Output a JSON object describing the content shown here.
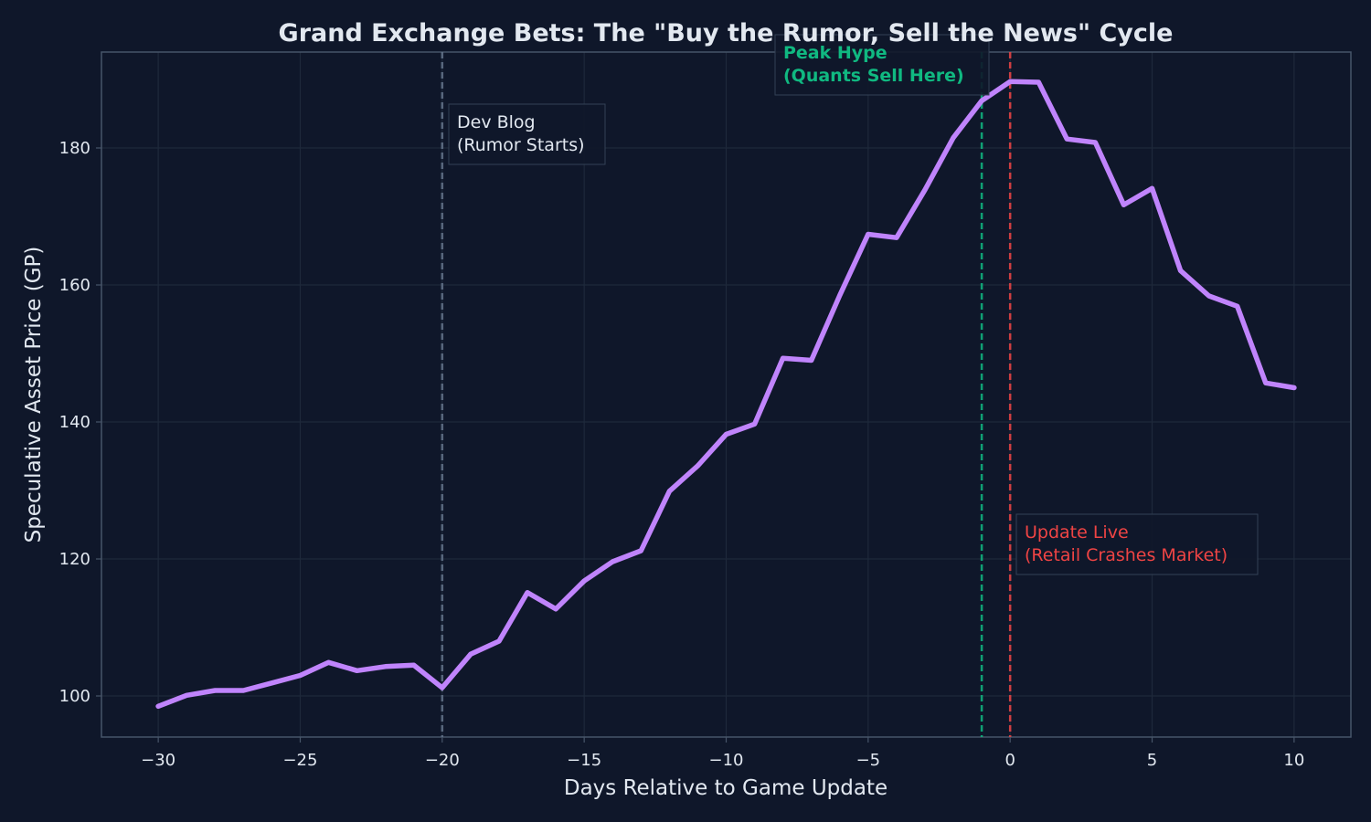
{
  "chart_data": {
    "type": "line",
    "title": "Grand Exchange Bets: The \"Buy the Rumor, Sell the News\" Cycle",
    "xlabel": "Days Relative to Game Update",
    "ylabel": "Speculative Asset Price (GP)",
    "xlim": [
      -32,
      12
    ],
    "ylim": [
      94,
      194
    ],
    "xticks": [
      -30,
      -25,
      -20,
      -15,
      -10,
      -5,
      0,
      5,
      10
    ],
    "xtick_labels": [
      "−30",
      "−25",
      "−20",
      "−15",
      "−10",
      "−5",
      "0",
      "5",
      "10"
    ],
    "yticks": [
      100,
      120,
      140,
      160,
      180
    ],
    "ytick_labels": [
      "100",
      "120",
      "140",
      "160",
      "180"
    ],
    "grid": true,
    "series": [
      {
        "color": "#c084fc",
        "x": [
          -30,
          -29,
          -28,
          -27,
          -26,
          -25,
          -24,
          -23,
          -22,
          -21,
          -20,
          -19,
          -18,
          -17,
          -16,
          -15,
          -14,
          -13,
          -12,
          -11,
          -10,
          -9,
          -8,
          -7,
          -6,
          -5,
          -4,
          -3,
          -2,
          -1,
          0,
          1,
          2,
          3,
          4,
          5,
          6,
          7,
          8,
          9,
          10
        ],
        "values": [
          98.5,
          100.1,
          100.8,
          100.8,
          101.9,
          103.0,
          104.9,
          103.7,
          104.3,
          104.5,
          101.2,
          106.1,
          108.0,
          115.1,
          112.7,
          116.8,
          119.6,
          121.2,
          129.9,
          133.6,
          138.2,
          139.7,
          149.3,
          149.0,
          158.5,
          167.4,
          166.9,
          173.9,
          181.5,
          186.9,
          189.7,
          189.6,
          181.3,
          180.8,
          171.7,
          174.1,
          162.1,
          158.4,
          156.9,
          145.7,
          145.0
        ]
      }
    ],
    "vlines": [
      {
        "x": -20,
        "color": "#64748b"
      },
      {
        "x": -1,
        "color": "#10b981"
      },
      {
        "x": 0,
        "color": "#ef4444"
      }
    ],
    "annotations": [
      {
        "lines": [
          "Dev Blog",
          "(Rumor Starts)"
        ],
        "color": "#e2e8f0",
        "bold": false
      },
      {
        "lines": [
          "Peak Hype",
          "(Quants Sell Here)"
        ],
        "color": "#10b981",
        "bold": true
      },
      {
        "lines": [
          "Update Live",
          "(Retail Crashes Market)"
        ],
        "color": "#ef4444",
        "bold": false
      }
    ],
    "colors": {
      "background": "#0f172a",
      "grid": "#1e293b",
      "axis": "#475569",
      "text": "#e2e8f0"
    }
  }
}
